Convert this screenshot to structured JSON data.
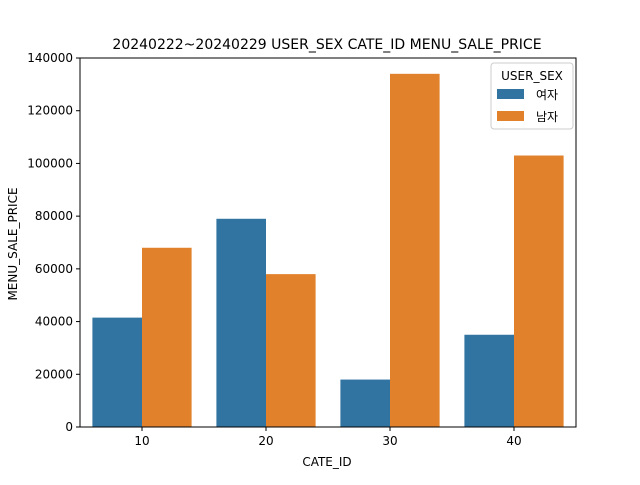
{
  "chart_data": {
    "type": "bar",
    "title": "20240222~20240229 USER_SEX CATE_ID   MENU_SALE_PRICE",
    "xlabel": "CATE_ID",
    "ylabel": "MENU_SALE_PRICE",
    "categories": [
      "10",
      "20",
      "30",
      "40"
    ],
    "series": [
      {
        "name": "여자",
        "color": "#3274a1",
        "values": [
          41500,
          79000,
          18000,
          35000
        ]
      },
      {
        "name": "남자",
        "color": "#e1812c",
        "values": [
          68000,
          58000,
          134000,
          103000
        ]
      }
    ],
    "ylim": [
      0,
      140000
    ],
    "yticks": [
      0,
      20000,
      40000,
      60000,
      80000,
      100000,
      120000,
      140000
    ],
    "legend": {
      "title": "USER_SEX",
      "placement": "top-right"
    },
    "grid": false
  }
}
